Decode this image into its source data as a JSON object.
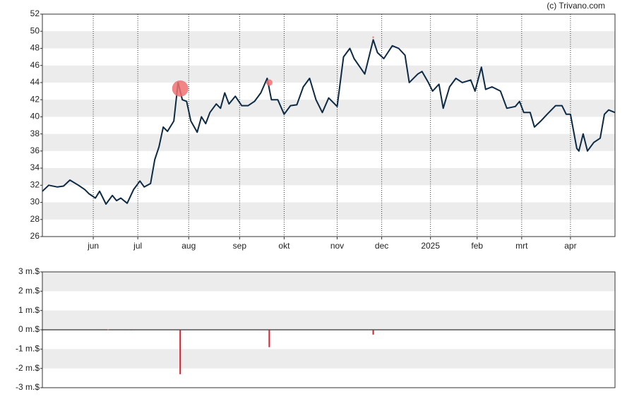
{
  "credit": "(c) Trivano.com",
  "chart_data": [
    {
      "type": "line",
      "color": "#0d2a45",
      "grid": true,
      "x": [
        0,
        3,
        7,
        10,
        13,
        17,
        20,
        22,
        25,
        27,
        30,
        33,
        35,
        37,
        40,
        43,
        46,
        48,
        51,
        53,
        55,
        57,
        59,
        62,
        64,
        66,
        68,
        70,
        73,
        75,
        77,
        79,
        82,
        84,
        86,
        88,
        91,
        94,
        97,
        100,
        103,
        106,
        108,
        111,
        114,
        117,
        120,
        123,
        126,
        129,
        132,
        135,
        139,
        142,
        145,
        147,
        152,
        156,
        158,
        161,
        165,
        168,
        171,
        173,
        177,
        179,
        182,
        184,
        187,
        189,
        192,
        195,
        198,
        202,
        204,
        207,
        209,
        212,
        216,
        219,
        223,
        225,
        227,
        230,
        232,
        235,
        238,
        242,
        245,
        247,
        249,
        252,
        253,
        255,
        257,
        260,
        263,
        265,
        267,
        270
      ],
      "values": [
        31.3,
        32.0,
        31.8,
        31.9,
        32.6,
        32.0,
        31.5,
        31.0,
        30.5,
        31.3,
        29.8,
        30.8,
        30.2,
        30.5,
        29.9,
        31.5,
        32.5,
        31.8,
        32.2,
        35.0,
        36.5,
        38.8,
        38.3,
        39.5,
        44.0,
        42.0,
        41.8,
        39.5,
        38.2,
        40.0,
        39.2,
        40.5,
        41.5,
        41.0,
        42.8,
        41.5,
        42.4,
        41.3,
        41.3,
        41.8,
        42.8,
        44.5,
        42.0,
        42.0,
        40.3,
        41.3,
        41.4,
        43.5,
        44.5,
        42.0,
        40.5,
        42.2,
        41.2,
        47.0,
        48.0,
        46.8,
        45.0,
        49.0,
        47.5,
        46.8,
        48.3,
        48.0,
        47.2,
        44.0,
        45.0,
        45.3,
        44.0,
        43.0,
        43.8,
        41.0,
        43.5,
        44.5,
        44.0,
        44.3,
        43.0,
        45.8,
        43.2,
        43.5,
        43.0,
        41.0,
        41.2,
        41.8,
        40.5,
        40.5,
        38.8,
        39.5,
        40.3,
        41.3,
        41.3,
        40.3,
        40.3,
        36.3,
        36.0,
        38.0,
        36.0,
        37.0,
        37.5,
        40.3,
        40.8,
        40.5
      ],
      "markers": {
        "color": "#f07070",
        "x": [
          65,
          107,
          156
        ],
        "values": [
          43.3,
          44.0,
          49.3
        ]
      },
      "xlim": [
        0,
        270
      ],
      "xticks": [
        {
          "value": 24,
          "label": "jun"
        },
        {
          "value": 45,
          "label": "jul"
        },
        {
          "value": 69,
          "label": "aug"
        },
        {
          "value": 93,
          "label": "sep"
        },
        {
          "value": 114,
          "label": "okt"
        },
        {
          "value": 139,
          "label": "nov"
        },
        {
          "value": 160,
          "label": "dec"
        },
        {
          "value": 183,
          "label": "2025"
        },
        {
          "value": 205,
          "label": "feb"
        },
        {
          "value": 226,
          "label": "mrt"
        },
        {
          "value": 249,
          "label": "apr"
        }
      ],
      "ylim": [
        26,
        52
      ],
      "yticks": [
        26,
        28,
        30,
        32,
        34,
        36,
        38,
        40,
        42,
        44,
        46,
        48,
        50,
        52
      ]
    },
    {
      "type": "bar",
      "color": "#d0202e",
      "grid": true,
      "x": [
        31,
        42,
        65,
        107,
        156
      ],
      "values": [
        0.02,
        -0.03,
        -2.3,
        -0.9,
        -0.25
      ],
      "xlim": [
        0,
        270
      ],
      "ylim": [
        -3,
        3
      ],
      "yticks": [
        {
          "value": -3,
          "label": "-3 m.$"
        },
        {
          "value": -2,
          "label": "-2 m.$"
        },
        {
          "value": -1,
          "label": "-1 m.$"
        },
        {
          "value": 0,
          "label": "0 m.$"
        },
        {
          "value": 1,
          "label": "1 m.$"
        },
        {
          "value": 2,
          "label": "2 m.$"
        },
        {
          "value": 3,
          "label": "3 m.$"
        }
      ]
    }
  ]
}
